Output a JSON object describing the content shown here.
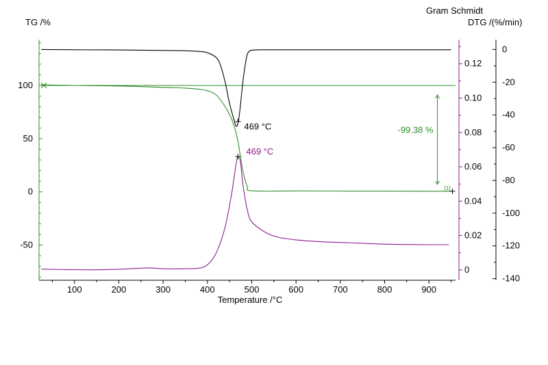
{
  "chart_data": {
    "type": "line",
    "xlabel": "Temperature /°C",
    "x_range": [
      20,
      960
    ],
    "x_ticks": [
      100,
      200,
      300,
      400,
      500,
      600,
      700,
      800,
      900
    ],
    "axes": {
      "tg": {
        "title": "TG /%",
        "range": [
          -83,
          143
        ],
        "ticks": [
          100,
          50,
          0,
          -50
        ],
        "color": "#2e8b2e"
      },
      "gram_schmidt": {
        "title": "Gram Schmidt",
        "range": [
          -0.006,
          0.134
        ],
        "ticks": [
          0.12,
          0.1,
          0.08,
          0.06,
          0.04,
          0.02,
          0
        ],
        "tick_labels": [
          "0.12",
          "0.10",
          "0.08",
          "0.06",
          "0.04",
          "0.02",
          "0"
        ],
        "color": "#8b1a8b"
      },
      "dtg": {
        "title": "DTG /(%/min)",
        "range": [
          -141,
          6
        ],
        "ticks": [
          0,
          -20,
          -40,
          -60,
          -80,
          -100,
          -120,
          -140
        ],
        "color": "#000000"
      }
    },
    "series": [
      {
        "axis": "tg",
        "color": "#2e8b2e",
        "x": [
          25,
          100,
          200,
          300,
          350,
          380,
          400,
          420,
          440,
          455,
          465,
          470,
          480,
          490,
          500,
          600,
          700,
          800,
          950
        ],
        "y": [
          100.5,
          100,
          99.5,
          98.2,
          97.5,
          96.5,
          95,
          91,
          80,
          68,
          55,
          45,
          20,
          5,
          1,
          0.9,
          0.8,
          0.7,
          0.6
        ]
      },
      {
        "axis": "gram_schmidt",
        "color": "#8b1a8b",
        "x": [
          25,
          80,
          150,
          200,
          230,
          250,
          270,
          290,
          320,
          350,
          380,
          400,
          420,
          440,
          455,
          465,
          470,
          475,
          480,
          490,
          500,
          530,
          560,
          600,
          650,
          700,
          750,
          800,
          850,
          900,
          945
        ],
        "y": [
          0.0005,
          0.0002,
          0.0001,
          0.0004,
          0.0008,
          0.001,
          0.0012,
          0.0008,
          0.0006,
          0.0007,
          0.001,
          0.003,
          0.01,
          0.025,
          0.045,
          0.062,
          0.066,
          0.062,
          0.05,
          0.035,
          0.028,
          0.022,
          0.019,
          0.0175,
          0.0165,
          0.016,
          0.0155,
          0.015,
          0.0148,
          0.0147,
          0.0147
        ]
      },
      {
        "axis": "dtg",
        "color": "#000000",
        "x": [
          25,
          100,
          200,
          300,
          350,
          380,
          400,
          420,
          430,
          440,
          450,
          460,
          465,
          469,
          473,
          480,
          485,
          490,
          495,
          500,
          520,
          600,
          700,
          800,
          950
        ],
        "y": [
          0,
          -0.2,
          -0.3,
          -0.6,
          -0.8,
          -1.2,
          -2,
          -5,
          -10,
          -20,
          -33,
          -43,
          -47,
          -45,
          -38,
          -20,
          -10,
          -3,
          -1,
          -0.5,
          -0.2,
          -0.2,
          -0.2,
          -0.2,
          -0.2
        ]
      }
    ],
    "annotations": [
      {
        "text": "469 °C",
        "x": 469,
        "axis": "dtg",
        "y": -44,
        "color": "#000000"
      },
      {
        "text": "469 °C",
        "x": 469,
        "axis": "gram_schmidt",
        "y": 0.066,
        "color": "#8b1a8b"
      },
      {
        "text": "-99.38 %",
        "color": "#2e8b2e"
      },
      {
        "text": "[1]",
        "color": "#2e8b2e"
      }
    ],
    "step_bracket": {
      "x": 950,
      "y_top": 100,
      "y_bottom": 0.6,
      "axis": "tg",
      "color": "#2e8b2e"
    },
    "reference_line": {
      "axis": "tg",
      "y": 100,
      "color": "#2e8b2e"
    },
    "grid": false
  }
}
